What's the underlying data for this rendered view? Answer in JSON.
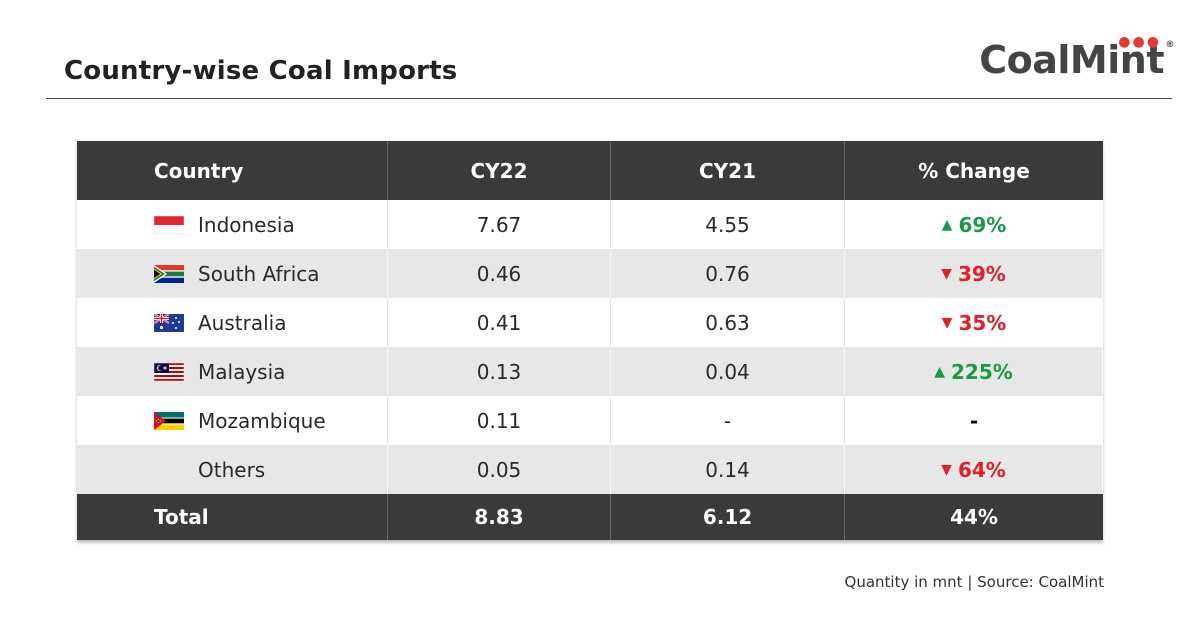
{
  "title": "Country-wise Coal Imports",
  "logo": {
    "text": "CoalMint",
    "reg": "®"
  },
  "colors": {
    "header_bg": "#3b3a3a",
    "up": "#1a9a45",
    "down": "#e0202a",
    "alt_row": "#e7e7e7"
  },
  "chart_data": {
    "type": "table",
    "title": "Country-wise Coal Imports",
    "columns": [
      "Country",
      "CY22",
      "CY21",
      "% Change"
    ],
    "rows": [
      {
        "country": "Indonesia",
        "flag": "indonesia-flag",
        "cy22": "7.67",
        "cy21": "4.55",
        "change": "69%",
        "direction": "up"
      },
      {
        "country": "South Africa",
        "flag": "south-africa-flag",
        "cy22": "0.46",
        "cy21": "0.76",
        "change": "39%",
        "direction": "down"
      },
      {
        "country": "Australia",
        "flag": "australia-flag",
        "cy22": "0.41",
        "cy21": "0.63",
        "change": "35%",
        "direction": "down"
      },
      {
        "country": "Malaysia",
        "flag": "malaysia-flag",
        "cy22": "0.13",
        "cy21": "0.04",
        "change": "225%",
        "direction": "up"
      },
      {
        "country": "Mozambique",
        "flag": "mozambique-flag",
        "cy22": "0.11",
        "cy21": "-",
        "change": "-",
        "direction": "none"
      },
      {
        "country": "Others",
        "flag": "",
        "cy22": "0.05",
        "cy21": "0.14",
        "change": "64%",
        "direction": "down"
      }
    ],
    "total": {
      "label": "Total",
      "cy22": "8.83",
      "cy21": "6.12",
      "change": "44%"
    }
  },
  "source": "Quantity in mnt | Source: CoalMint"
}
